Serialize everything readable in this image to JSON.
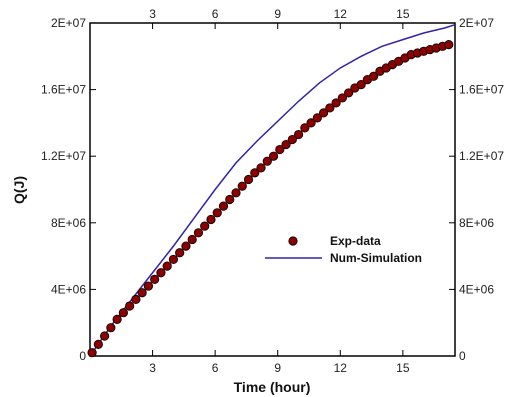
{
  "chart_data": {
    "type": "scatter",
    "xlabel": "Time (hour)",
    "ylabel": "Q(J)",
    "xlim": [
      0,
      17.5
    ],
    "ylim": [
      0,
      20000000
    ],
    "x_ticks": [
      3,
      6,
      9,
      12,
      15
    ],
    "y_ticks": [
      0,
      4000000,
      8000000,
      12000000,
      16000000,
      20000000
    ],
    "x_tick_labels": [
      "3",
      "6",
      "9",
      "12",
      "15"
    ],
    "y_tick_labels": [
      "0",
      "4E+06",
      "8E+06",
      "1.2E+07",
      "1.6E+07",
      "2E+07"
    ],
    "x_axis_top": true,
    "y_axis_right": true,
    "grid": false,
    "legend_position": "center-right",
    "series": [
      {
        "name": "Exp-data",
        "style": "markers",
        "color": "#8b0000",
        "x": [
          0.1,
          0.4,
          0.7,
          1.0,
          1.3,
          1.6,
          1.9,
          2.2,
          2.5,
          2.8,
          3.1,
          3.4,
          3.7,
          4.0,
          4.3,
          4.6,
          4.9,
          5.2,
          5.5,
          5.8,
          6.1,
          6.4,
          6.7,
          7.0,
          7.3,
          7.6,
          7.9,
          8.2,
          8.5,
          8.8,
          9.1,
          9.4,
          9.7,
          10.0,
          10.3,
          10.6,
          10.9,
          11.2,
          11.5,
          11.8,
          12.1,
          12.4,
          12.7,
          13.0,
          13.3,
          13.6,
          13.9,
          14.2,
          14.5,
          14.8,
          15.1,
          15.4,
          15.7,
          16.0,
          16.3,
          16.6,
          16.9,
          17.2
        ],
        "y": [
          200000,
          700000,
          1200000,
          1700000,
          2200000,
          2600000,
          3000000,
          3400000,
          3800000,
          4200000,
          4600000,
          5000000,
          5400000,
          5800000,
          6200000,
          6600000,
          7000000,
          7400000,
          7800000,
          8200000,
          8600000,
          9000000,
          9400000,
          9800000,
          10200000,
          10600000,
          11000000,
          11300000,
          11700000,
          12000000,
          12400000,
          12700000,
          13000000,
          13300000,
          13700000,
          14000000,
          14300000,
          14600000,
          14900000,
          15200000,
          15500000,
          15800000,
          16100000,
          16300000,
          16600000,
          16800000,
          17100000,
          17300000,
          17500000,
          17700000,
          17900000,
          18100000,
          18200000,
          18300000,
          18400000,
          18500000,
          18600000,
          18700000
        ]
      },
      {
        "name": "Num-Simulation",
        "style": "line",
        "color": "#3322aa",
        "x": [
          0.0,
          1.0,
          2.0,
          3.0,
          4.0,
          5.0,
          6.0,
          7.0,
          8.0,
          9.0,
          10.0,
          11.0,
          12.0,
          13.0,
          14.0,
          15.0,
          16.0,
          17.0,
          17.5
        ],
        "y": [
          0,
          1800000,
          3400000,
          5000000,
          6600000,
          8300000,
          10000000,
          11600000,
          12900000,
          14100000,
          15300000,
          16400000,
          17300000,
          18000000,
          18600000,
          19000000,
          19400000,
          19700000,
          19900000
        ]
      }
    ]
  }
}
